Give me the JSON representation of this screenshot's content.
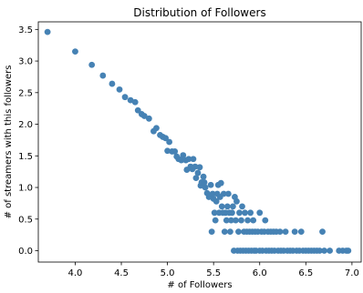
{
  "chart_data": {
    "type": "scatter",
    "title": "Distribution of Followers",
    "xlabel": "# of Followers",
    "ylabel": "# of streamers with this followers",
    "xlim": [
      3.6,
      7.1
    ],
    "ylim": [
      -0.18,
      3.62
    ],
    "xticks": [
      "4.0",
      "4.5",
      "5.0",
      "5.5",
      "6.0",
      "6.5",
      "7.0"
    ],
    "yticks": [
      "0.0",
      "0.5",
      "1.0",
      "1.5",
      "2.0",
      "2.5",
      "3.0",
      "3.5"
    ],
    "grid": false,
    "legend": "none",
    "marker_color": "#4682b4",
    "points": [
      [
        3.7,
        3.46
      ],
      [
        4.0,
        3.15
      ],
      [
        4.18,
        2.94
      ],
      [
        4.3,
        2.77
      ],
      [
        4.4,
        2.64
      ],
      [
        4.48,
        2.55
      ],
      [
        4.54,
        2.43
      ],
      [
        4.6,
        2.38
      ],
      [
        4.65,
        2.35
      ],
      [
        4.68,
        2.22
      ],
      [
        4.72,
        2.16
      ],
      [
        4.75,
        2.13
      ],
      [
        4.8,
        2.09
      ],
      [
        4.85,
        1.89
      ],
      [
        4.88,
        1.94
      ],
      [
        4.92,
        1.83
      ],
      [
        4.95,
        1.8
      ],
      [
        4.98,
        1.78
      ],
      [
        5.0,
        1.58
      ],
      [
        5.02,
        1.72
      ],
      [
        5.05,
        1.57
      ],
      [
        5.08,
        1.57
      ],
      [
        5.1,
        1.49
      ],
      [
        5.12,
        1.45
      ],
      [
        5.15,
        1.43
      ],
      [
        5.17,
        1.51
      ],
      [
        5.2,
        1.43
      ],
      [
        5.21,
        1.28
      ],
      [
        5.23,
        1.45
      ],
      [
        5.25,
        1.33
      ],
      [
        5.27,
        1.29
      ],
      [
        5.28,
        1.45
      ],
      [
        5.3,
        1.33
      ],
      [
        5.31,
        1.15
      ],
      [
        5.33,
        1.23
      ],
      [
        5.35,
        1.32
      ],
      [
        5.36,
        1.03
      ],
      [
        5.37,
        1.08
      ],
      [
        5.39,
        1.17
      ],
      [
        5.4,
        1.08
      ],
      [
        5.41,
        1.0
      ],
      [
        5.43,
        0.91
      ],
      [
        5.45,
        0.85
      ],
      [
        5.47,
        1.04
      ],
      [
        5.48,
        0.3
      ],
      [
        5.49,
        0.9
      ],
      [
        5.5,
        0.82
      ],
      [
        5.51,
        0.6
      ],
      [
        5.52,
        0.48
      ],
      [
        5.53,
        0.78
      ],
      [
        5.54,
        0.9
      ],
      [
        5.55,
        1.04
      ],
      [
        5.56,
        0.6
      ],
      [
        5.57,
        0.85
      ],
      [
        5.58,
        1.07
      ],
      [
        5.59,
        0.7
      ],
      [
        5.6,
        0.6
      ],
      [
        5.61,
        0.9
      ],
      [
        5.62,
        0.3
      ],
      [
        5.63,
        0.6
      ],
      [
        5.64,
        0.48
      ],
      [
        5.65,
        0.7
      ],
      [
        5.66,
        0.9
      ],
      [
        5.67,
        0.6
      ],
      [
        5.68,
        0.3
      ],
      [
        5.69,
        0.48
      ],
      [
        5.7,
        0.6
      ],
      [
        5.71,
        0.7
      ],
      [
        5.72,
        0.0
      ],
      [
        5.73,
        0.85
      ],
      [
        5.74,
        0.48
      ],
      [
        5.75,
        0.78
      ],
      [
        5.76,
        0.0
      ],
      [
        5.77,
        0.3
      ],
      [
        5.78,
        0.6
      ],
      [
        5.79,
        0.0
      ],
      [
        5.8,
        0.48
      ],
      [
        5.81,
        0.7
      ],
      [
        5.82,
        0.0
      ],
      [
        5.83,
        0.3
      ],
      [
        5.84,
        0.6
      ],
      [
        5.85,
        0.0
      ],
      [
        5.86,
        0.3
      ],
      [
        5.87,
        0.48
      ],
      [
        5.88,
        0.0
      ],
      [
        5.89,
        0.3
      ],
      [
        5.9,
        0.6
      ],
      [
        5.91,
        0.0
      ],
      [
        5.92,
        0.3
      ],
      [
        5.93,
        0.48
      ],
      [
        5.94,
        0.0
      ],
      [
        5.95,
        0.3
      ],
      [
        5.96,
        0.0
      ],
      [
        5.98,
        0.3
      ],
      [
        6.0,
        0.0
      ],
      [
        6.0,
        0.6
      ],
      [
        6.02,
        0.3
      ],
      [
        6.03,
        0.0
      ],
      [
        6.05,
        0.3
      ],
      [
        6.06,
        0.48
      ],
      [
        6.07,
        0.0
      ],
      [
        6.09,
        0.3
      ],
      [
        6.1,
        0.0
      ],
      [
        6.12,
        0.3
      ],
      [
        6.13,
        0.0
      ],
      [
        6.15,
        0.3
      ],
      [
        6.16,
        0.0
      ],
      [
        6.18,
        0.3
      ],
      [
        6.2,
        0.0
      ],
      [
        6.22,
        0.3
      ],
      [
        6.23,
        0.0
      ],
      [
        6.26,
        0.0
      ],
      [
        6.28,
        0.3
      ],
      [
        6.3,
        0.0
      ],
      [
        6.33,
        0.0
      ],
      [
        6.36,
        0.0
      ],
      [
        6.38,
        0.3
      ],
      [
        6.4,
        0.0
      ],
      [
        6.43,
        0.0
      ],
      [
        6.45,
        0.3
      ],
      [
        6.47,
        0.0
      ],
      [
        6.5,
        0.0
      ],
      [
        6.53,
        0.0
      ],
      [
        6.56,
        0.0
      ],
      [
        6.59,
        0.0
      ],
      [
        6.62,
        0.0
      ],
      [
        6.65,
        0.0
      ],
      [
        6.68,
        0.3
      ],
      [
        6.7,
        0.0
      ],
      [
        6.76,
        0.0
      ],
      [
        6.86,
        0.0
      ],
      [
        6.9,
        0.0
      ],
      [
        6.94,
        0.0
      ],
      [
        6.96,
        0.0
      ]
    ]
  }
}
